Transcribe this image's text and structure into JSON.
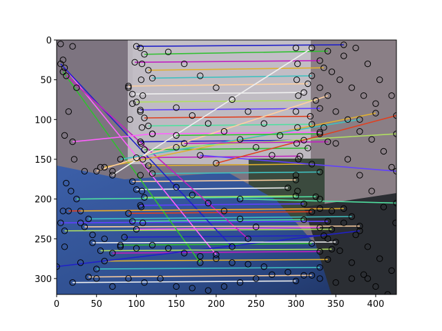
{
  "chart_data": {
    "type": "scatter",
    "title": "",
    "xlabel": "",
    "ylabel": "",
    "xlim": [
      0,
      426
    ],
    "ylim": [
      320,
      0
    ],
    "y_inverted": true,
    "grid": false,
    "legend": "none",
    "background": "photo",
    "xticks": [
      0,
      50,
      100,
      150,
      200,
      250,
      300,
      350,
      400
    ],
    "yticks": [
      0,
      50,
      100,
      150,
      200,
      250,
      300
    ],
    "match_colors": [
      "#2020c8",
      "#30c030",
      "#c020c0",
      "#e0b030",
      "#40c0c0",
      "#ffd0a0",
      "#f0f0f0",
      "#b0e060",
      "#6040ff",
      "#e04020",
      "#50e0a0",
      "#ff60ff"
    ],
    "keypoints": [
      [
        5,
        5
      ],
      [
        20,
        8
      ],
      [
        8,
        25
      ],
      [
        25,
        60
      ],
      [
        15,
        90
      ],
      [
        10,
        120
      ],
      [
        22,
        150
      ],
      [
        12,
        180
      ],
      [
        35,
        165
      ],
      [
        55,
        160
      ],
      [
        70,
        165
      ],
      [
        18,
        190
      ],
      [
        8,
        215
      ],
      [
        30,
        230
      ],
      [
        45,
        245
      ],
      [
        60,
        250
      ],
      [
        80,
        260
      ],
      [
        100,
        262
      ],
      [
        120,
        258
      ],
      [
        140,
        262
      ],
      [
        160,
        268
      ],
      [
        180,
        272
      ],
      [
        200,
        275
      ],
      [
        220,
        280
      ],
      [
        240,
        282
      ],
      [
        260,
        285
      ],
      [
        10,
        260
      ],
      [
        30,
        280
      ],
      [
        50,
        300
      ],
      [
        70,
        310
      ],
      [
        90,
        300
      ],
      [
        110,
        305
      ],
      [
        130,
        300
      ],
      [
        150,
        310
      ],
      [
        170,
        312
      ],
      [
        190,
        315
      ],
      [
        210,
        310
      ],
      [
        230,
        305
      ],
      [
        250,
        300
      ],
      [
        270,
        295
      ],
      [
        290,
        292
      ],
      [
        310,
        296
      ],
      [
        330,
        300
      ],
      [
        350,
        305
      ],
      [
        370,
        300
      ],
      [
        390,
        300
      ],
      [
        105,
        10
      ],
      [
        107,
        30
      ],
      [
        106,
        50
      ],
      [
        108,
        70
      ],
      [
        105,
        90
      ],
      [
        107,
        110
      ],
      [
        106,
        130
      ],
      [
        108,
        150
      ],
      [
        105,
        170
      ],
      [
        107,
        190
      ],
      [
        106,
        210
      ],
      [
        108,
        230
      ],
      [
        300,
        10
      ],
      [
        302,
        30
      ],
      [
        301,
        50
      ],
      [
        303,
        70
      ],
      [
        300,
        90
      ],
      [
        302,
        110
      ],
      [
        301,
        130
      ],
      [
        303,
        150
      ],
      [
        300,
        170
      ],
      [
        302,
        190
      ],
      [
        90,
        60
      ],
      [
        95,
        80
      ],
      [
        92,
        100
      ],
      [
        140,
        15
      ],
      [
        160,
        30
      ],
      [
        180,
        45
      ],
      [
        200,
        60
      ],
      [
        220,
        75
      ],
      [
        240,
        90
      ],
      [
        260,
        105
      ],
      [
        280,
        120
      ],
      [
        330,
        60
      ],
      [
        345,
        40
      ],
      [
        360,
        20
      ],
      [
        375,
        10
      ],
      [
        390,
        30
      ],
      [
        405,
        50
      ],
      [
        420,
        70
      ],
      [
        335,
        110
      ],
      [
        350,
        130
      ],
      [
        365,
        150
      ],
      [
        380,
        170
      ],
      [
        395,
        190
      ],
      [
        410,
        210
      ],
      [
        425,
        230
      ],
      [
        330,
        200
      ],
      [
        345,
        215
      ],
      [
        360,
        230
      ],
      [
        375,
        245
      ],
      [
        390,
        260
      ],
      [
        405,
        275
      ],
      [
        420,
        290
      ],
      [
        340,
        250
      ],
      [
        355,
        265
      ],
      [
        370,
        280
      ],
      [
        385,
        295
      ],
      [
        400,
        310
      ],
      [
        415,
        320
      ],
      [
        350,
        90
      ],
      [
        365,
        100
      ],
      [
        380,
        115
      ],
      [
        395,
        125
      ],
      [
        410,
        140
      ],
      [
        420,
        160
      ],
      [
        400,
        80
      ],
      [
        385,
        70
      ],
      [
        370,
        60
      ],
      [
        355,
        50
      ],
      [
        150,
        85
      ],
      [
        170,
        95
      ],
      [
        190,
        105
      ],
      [
        210,
        115
      ],
      [
        230,
        125
      ],
      [
        250,
        135
      ],
      [
        270,
        145
      ],
      [
        150,
        185
      ],
      [
        170,
        195
      ],
      [
        190,
        205
      ],
      [
        210,
        215
      ],
      [
        230,
        225
      ],
      [
        250,
        235
      ]
    ],
    "matches": [
      [
        [
          100,
          8
        ],
        [
          360,
          6
        ]
      ],
      [
        [
          110,
          18
        ],
        [
          340,
          14
        ]
      ],
      [
        [
          98,
          28
        ],
        [
          330,
          26
        ]
      ],
      [
        [
          115,
          38
        ],
        [
          335,
          35
        ]
      ],
      [
        [
          120,
          48
        ],
        [
          320,
          45
        ]
      ],
      [
        [
          90,
          58
        ],
        [
          315,
          55
        ]
      ],
      [
        [
          95,
          68
        ],
        [
          310,
          66
        ]
      ],
      [
        [
          100,
          78
        ],
        [
          325,
          76
        ]
      ],
      [
        [
          105,
          88
        ],
        [
          330,
          86
        ]
      ],
      [
        [
          110,
          98
        ],
        [
          318,
          96
        ]
      ],
      [
        [
          115,
          108
        ],
        [
          320,
          106
        ]
      ],
      [
        [
          120,
          118
        ],
        [
          330,
          116
        ]
      ],
      [
        [
          105,
          128
        ],
        [
          310,
          126
        ]
      ],
      [
        [
          110,
          138
        ],
        [
          315,
          136
        ]
      ],
      [
        [
          100,
          148
        ],
        [
          305,
          146
        ]
      ],
      [
        [
          115,
          158
        ],
        [
          320,
          156
        ]
      ],
      [
        [
          120,
          168
        ],
        [
          330,
          166
        ]
      ],
      [
        [
          95,
          178
        ],
        [
          300,
          176
        ]
      ],
      [
        [
          100,
          188
        ],
        [
          290,
          186
        ]
      ],
      [
        [
          110,
          198
        ],
        [
          300,
          196
        ]
      ],
      [
        [
          105,
          208
        ],
        [
          310,
          206
        ]
      ],
      [
        [
          90,
          218
        ],
        [
          320,
          216
        ]
      ],
      [
        [
          95,
          228
        ],
        [
          310,
          226
        ]
      ],
      [
        [
          100,
          238
        ],
        [
          330,
          236
        ]
      ],
      [
        [
          85,
          248
        ],
        [
          335,
          246
        ]
      ],
      [
        [
          80,
          258
        ],
        [
          320,
          256
        ]
      ],
      [
        [
          70,
          268
        ],
        [
          330,
          266
        ]
      ],
      [
        [
          60,
          278
        ],
        [
          340,
          276
        ]
      ],
      [
        [
          50,
          288
        ],
        [
          330,
          286
        ]
      ],
      [
        [
          40,
          298
        ],
        [
          320,
          296
        ]
      ],
      [
        [
          20,
          305
        ],
        [
          300,
          303
        ]
      ],
      [
        [
          10,
          240
        ],
        [
          345,
          238
        ]
      ],
      [
        [
          5,
          230
        ],
        [
          340,
          228
        ]
      ],
      [
        [
          15,
          215
        ],
        [
          330,
          212
        ]
      ],
      [
        [
          25,
          200
        ],
        [
          325,
          197
        ]
      ],
      [
        [
          10,
          35
        ],
        [
          200,
          270
        ]
      ],
      [
        [
          5,
          30
        ],
        [
          220,
          260
        ]
      ],
      [
        [
          8,
          40
        ],
        [
          180,
          280
        ]
      ],
      [
        [
          12,
          45
        ],
        [
          240,
          250
        ]
      ],
      [
        [
          60,
          160
        ],
        [
          400,
          92
        ]
      ],
      [
        [
          80,
          150
        ],
        [
          380,
          100
        ]
      ],
      [
        [
          50,
          165
        ],
        [
          340,
          70
        ]
      ],
      [
        [
          70,
          170
        ],
        [
          320,
          10
        ]
      ],
      [
        [
          150,
          135
        ],
        [
          426,
          118
        ]
      ],
      [
        [
          180,
          145
        ],
        [
          426,
          165
        ]
      ],
      [
        [
          200,
          155
        ],
        [
          426,
          95
        ]
      ],
      [
        [
          230,
          200
        ],
        [
          426,
          205
        ]
      ],
      [
        [
          20,
          128
        ],
        [
          120,
          118
        ]
      ],
      [
        [
          0,
          285
        ],
        [
          380,
          240
        ]
      ],
      [
        [
          150,
          120
        ],
        [
          330,
          118
        ]
      ],
      [
        [
          160,
          130
        ],
        [
          340,
          128
        ]
      ],
      [
        [
          30,
          215
        ],
        [
          360,
          212
        ]
      ],
      [
        [
          40,
          225
        ],
        [
          370,
          222
        ]
      ],
      [
        [
          35,
          235
        ],
        [
          380,
          234
        ]
      ],
      [
        [
          45,
          255
        ],
        [
          350,
          254
        ]
      ],
      [
        [
          55,
          265
        ],
        [
          345,
          263
        ]
      ]
    ]
  }
}
